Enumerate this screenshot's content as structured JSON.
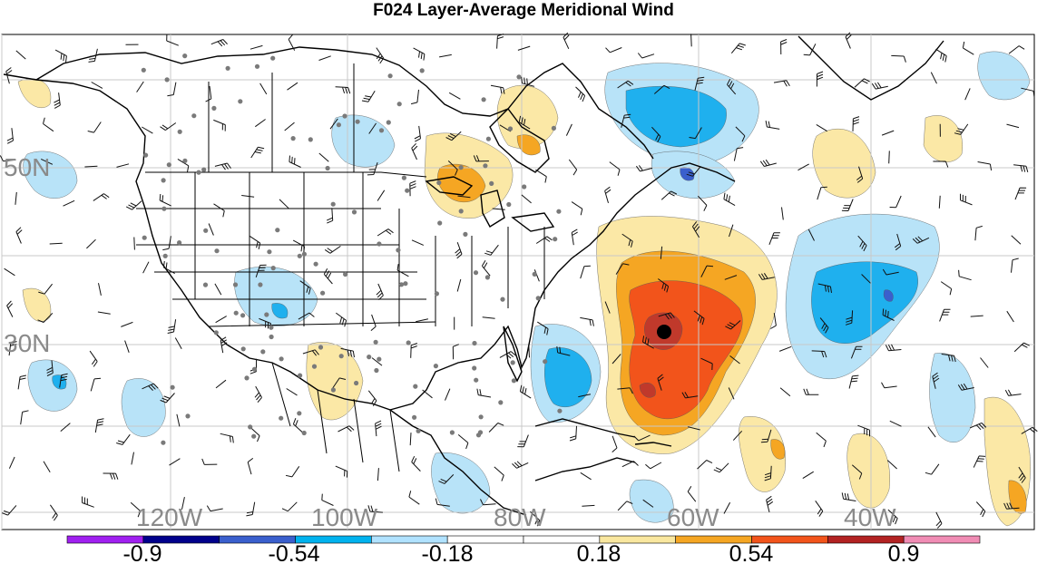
{
  "title": "F024 Layer-Average Meridional Wind",
  "lat_labels": [
    "50N",
    "30N"
  ],
  "lon_labels": [
    "120W",
    "100W",
    "80W",
    "60W",
    "40W"
  ],
  "colorbar": {
    "colors": [
      "#a020f0",
      "#00008b",
      "#3a5fcd",
      "#00b2ee",
      "#b0e2ff",
      "#ffffff",
      "#ffffff",
      "#f9e79f",
      "#f5a623",
      "#f2541b",
      "#b22222",
      "#f08cb4"
    ],
    "labels": [
      "-0.9",
      "-0.54",
      "-0.18",
      "0.18",
      "0.54",
      "0.9"
    ]
  },
  "palette": {
    "pos1": "#fbe8a6",
    "pos2": "#f5a623",
    "pos3": "#f2541b",
    "pos4": "#c0392b",
    "neg1": "#b8e3f8",
    "neg2": "#1fb0ee",
    "neg3": "#3a5fcd"
  }
}
